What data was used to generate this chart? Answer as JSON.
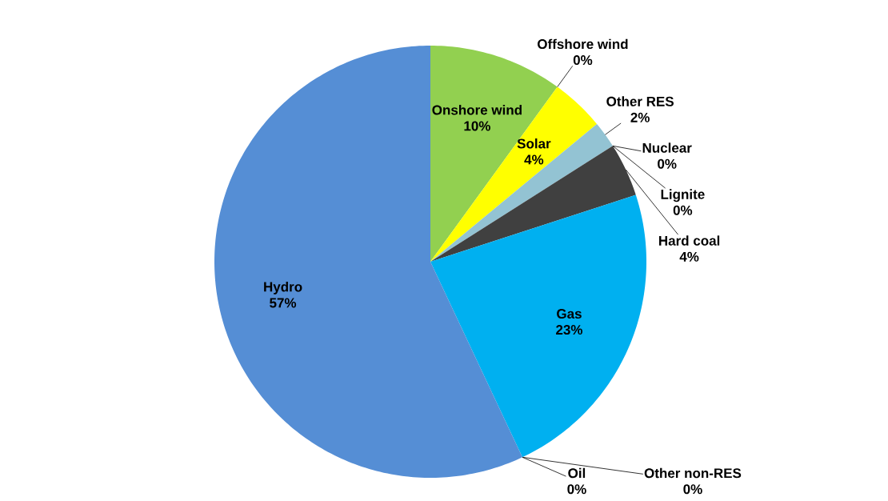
{
  "chart_data": {
    "type": "pie",
    "categories": [
      "Onshore wind",
      "Offshore wind",
      "Solar",
      "Other RES",
      "Nuclear",
      "Lignite",
      "Hard coal",
      "Gas",
      "Other non-RES",
      "Oil",
      "Hydro"
    ],
    "values": [
      10,
      0,
      4,
      2,
      0,
      0,
      4,
      23,
      0,
      0,
      57
    ],
    "value_labels": [
      "10%",
      "0%",
      "4%",
      "2%",
      "0%",
      "0%",
      "4%",
      "23%",
      "0%",
      "0%",
      "57%"
    ],
    "colors": [
      "#92d050",
      "#00b050",
      "#ffff00",
      "#93c3d3",
      "#c00000",
      "#7f6000",
      "#404040",
      "#00b0f0",
      "#7030a0",
      "#000000",
      "#558ed5"
    ]
  }
}
